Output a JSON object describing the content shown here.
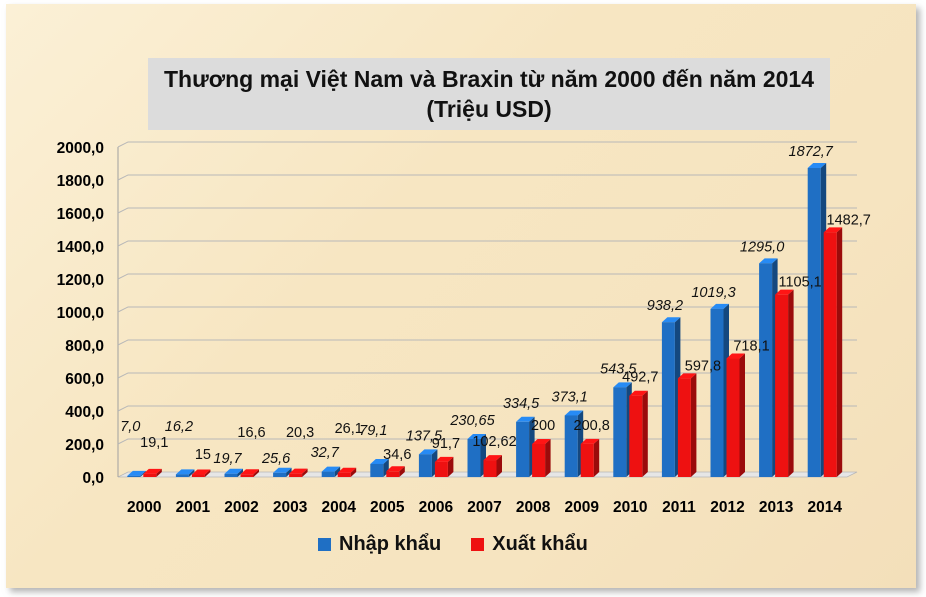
{
  "chart_data": {
    "type": "bar",
    "title": "Thương mại Việt Nam và Braxin từ năm 2000 đến năm 2014",
    "subtitle": "(Triệu USD)",
    "categories": [
      "2000",
      "2001",
      "2002",
      "2003",
      "2004",
      "2005",
      "2006",
      "2007",
      "2008",
      "2009",
      "2010",
      "2011",
      "2012",
      "2013",
      "2014"
    ],
    "series": [
      {
        "name": "Nhập khẩu",
        "color": "#1f6fc4",
        "values": [
          7.0,
          16.2,
          19.7,
          25.6,
          32.7,
          79.1,
          137.5,
          230.65,
          334.5,
          373.1,
          543.5,
          938.2,
          1019.3,
          1295.0,
          1872.7
        ],
        "labels": [
          "7,0",
          "16,2",
          "19,7",
          "25,6",
          "32,7",
          "79,1",
          "137,5",
          "230,65",
          "334,5",
          "373,1",
          "543,5",
          "938,2",
          "1019,3",
          "1295,0",
          "1872,7"
        ]
      },
      {
        "name": "Xuất khẩu",
        "color": "#ee1111",
        "values": [
          19.1,
          15,
          16.6,
          20.3,
          26.1,
          34.6,
          91.7,
          102.62,
          200,
          200.8,
          492.7,
          597.8,
          718.1,
          1105.1,
          1482.7
        ],
        "labels": [
          "19,1",
          "15",
          "16,6",
          "20,3",
          "26,1",
          "34,6",
          "91,7",
          "102,62",
          "200",
          "200,8",
          "492,7",
          "597,8",
          "718,1",
          "1105,1",
          "1482,7"
        ]
      }
    ],
    "ylim": [
      0,
      2000
    ],
    "yticks": [
      "0,0",
      "200,0",
      "400,0",
      "600,0",
      "800,0",
      "1000,0",
      "1200,0",
      "1400,0",
      "1600,0",
      "1800,0",
      "2000,0"
    ],
    "grid": true,
    "legend_position": "bottom",
    "xlabel": "",
    "ylabel": ""
  }
}
